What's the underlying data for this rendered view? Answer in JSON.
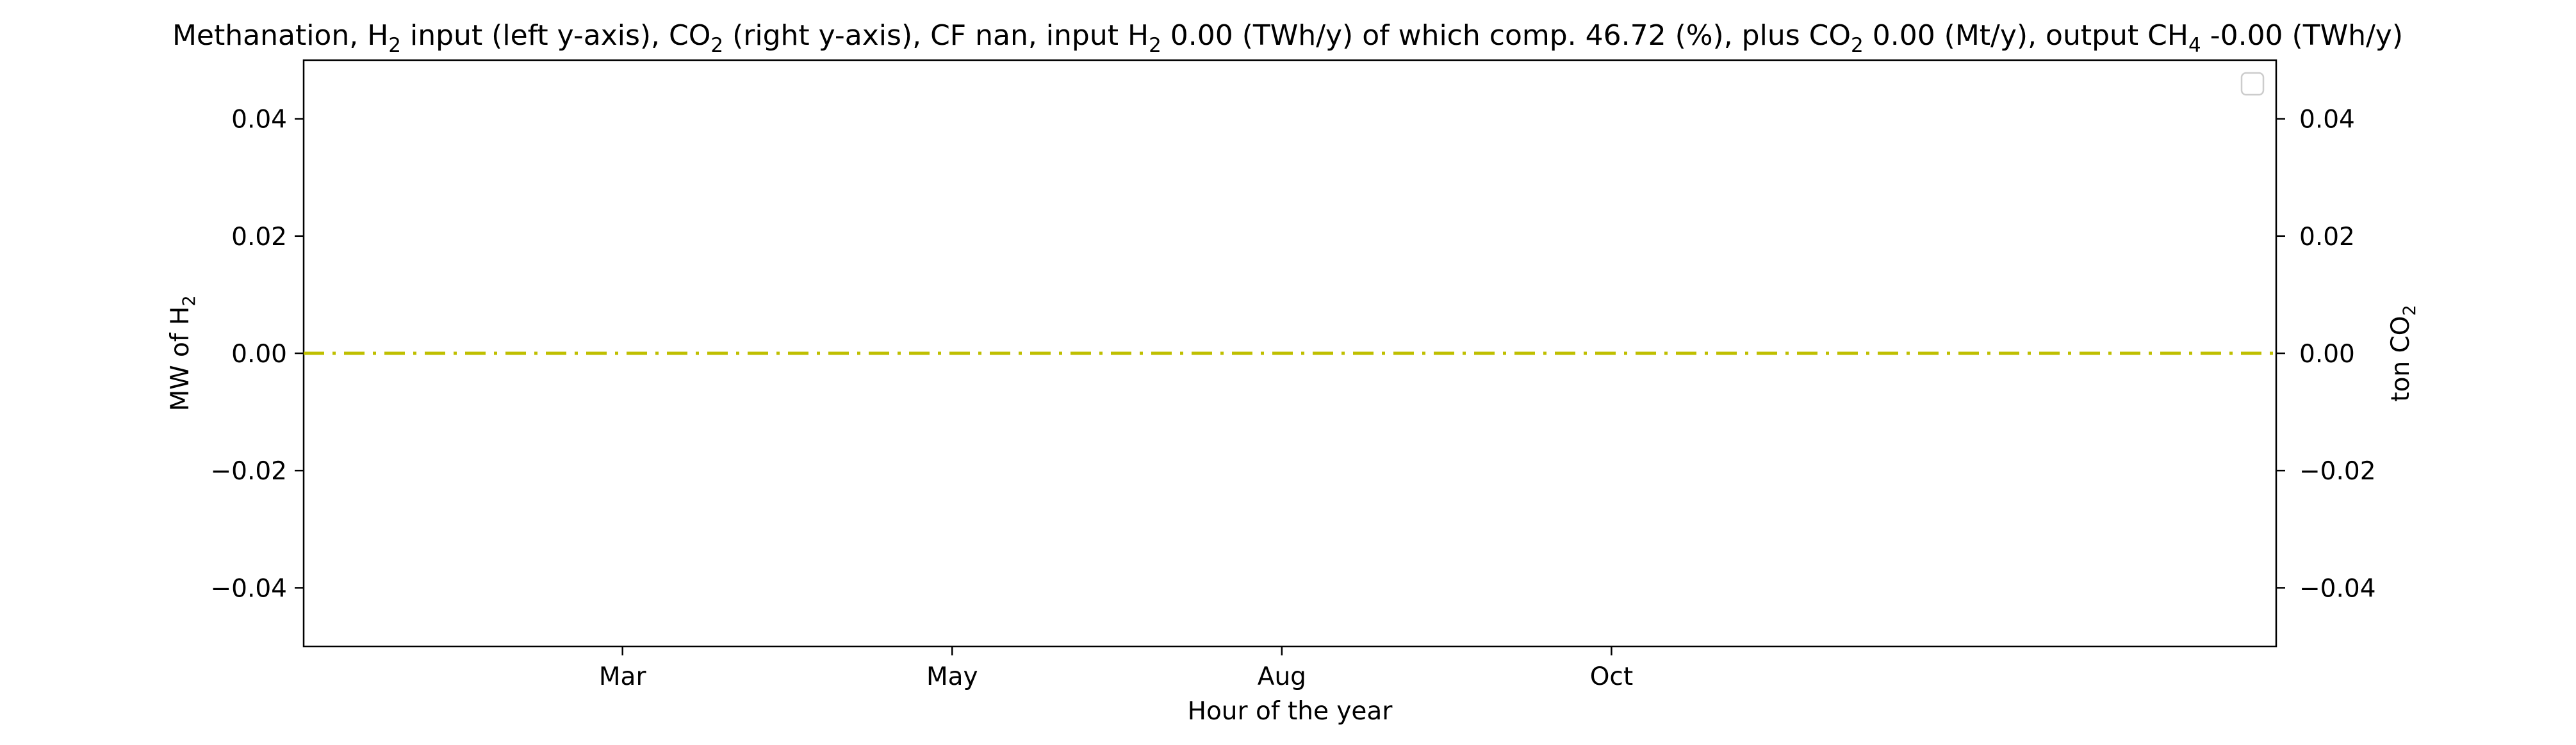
{
  "chart_data": {
    "type": "line",
    "title": "Methanation, H₂ input (left y-axis), CO₂ (right y-axis), CF nan, input H₂ 0.00 (TWh/y) of which comp. 46.72 (%), plus CO₂ 0.00 (Mt/y), output CH₄ -0.00 (TWh/y)",
    "xlabel": "Hour of the year",
    "ylabel": "MW of H₂",
    "ylabel_right": "ton CO₂",
    "x_ticks": [
      "Mar",
      "May",
      "Aug",
      "Oct"
    ],
    "x_tick_positions": [
      1416,
      2880,
      4344,
      5808
    ],
    "xlim": [
      0,
      8760
    ],
    "ylim": [
      -0.05,
      0.05
    ],
    "y_ticks": [
      -0.04,
      -0.02,
      0.0,
      0.02,
      0.04
    ],
    "y_tick_labels": [
      "−0.04",
      "−0.02",
      "0.00",
      "0.02",
      "0.04"
    ],
    "y_right_ticks": [
      -0.04,
      -0.02,
      0.0,
      0.02,
      0.04
    ],
    "y_right_tick_labels": [
      "−0.04",
      "−0.02",
      "0.00",
      "0.02",
      "0.04"
    ],
    "ylim_right": [
      -0.05,
      0.05
    ],
    "grid": false,
    "legend": "top-right",
    "legend_entries": [],
    "series": [
      {
        "color": "#bfbf00",
        "linestyle": "dash-dot",
        "axis": "left",
        "x": [
          0,
          8760
        ],
        "values": [
          0,
          0
        ]
      }
    ]
  }
}
